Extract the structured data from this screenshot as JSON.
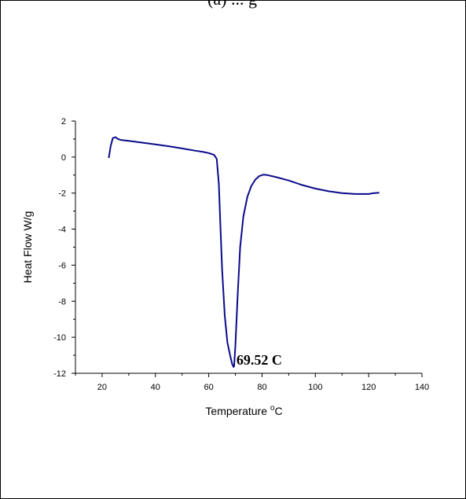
{
  "header_fragment": "(a) ... g",
  "chart_data": {
    "type": "line",
    "title": "",
    "xlabel": "Temperature °C",
    "xlabel_main": "Temperature ",
    "xlabel_unit": "C",
    "ylabel": "Heat Flow W/g",
    "xlim": [
      10,
      140
    ],
    "ylim": [
      -12,
      2
    ],
    "x_ticks": [
      20,
      40,
      60,
      80,
      100,
      120,
      140
    ],
    "y_ticks": [
      2,
      0,
      -2,
      -4,
      -6,
      -8,
      -10,
      -12
    ],
    "grid": false,
    "line_color": "#0a0a8c",
    "series": [
      {
        "x": [
          22.5,
          23.2,
          24.0,
          25.0,
          26.0,
          27.0,
          30,
          35,
          40,
          45,
          50,
          55,
          58,
          60,
          62,
          63,
          63.8,
          64.3,
          65.0,
          66.0,
          67.0,
          68.0,
          68.8,
          69.3,
          69.52,
          70.0,
          70.8,
          71.8,
          73.0,
          74.5,
          76.0,
          77.5,
          79.0,
          80.5,
          82.0,
          85,
          90,
          95,
          100,
          105,
          110,
          115,
          118,
          120,
          122,
          124
        ],
        "y": [
          -0.05,
          0.6,
          1.05,
          1.1,
          1.0,
          0.95,
          0.9,
          0.8,
          0.7,
          0.6,
          0.48,
          0.35,
          0.28,
          0.22,
          0.12,
          -0.1,
          -1.5,
          -3.5,
          -6.2,
          -8.8,
          -10.3,
          -11.0,
          -11.5,
          -11.65,
          -11.6,
          -10.5,
          -7.8,
          -5.0,
          -3.3,
          -2.2,
          -1.6,
          -1.25,
          -1.05,
          -0.98,
          -1.0,
          -1.1,
          -1.3,
          -1.55,
          -1.75,
          -1.9,
          -2.0,
          -2.05,
          -2.05,
          -2.05,
          -2.0,
          -1.98
        ]
      }
    ],
    "annotations": [
      {
        "text": "69.52 C",
        "x": 69.52,
        "y": -11.65
      }
    ]
  }
}
